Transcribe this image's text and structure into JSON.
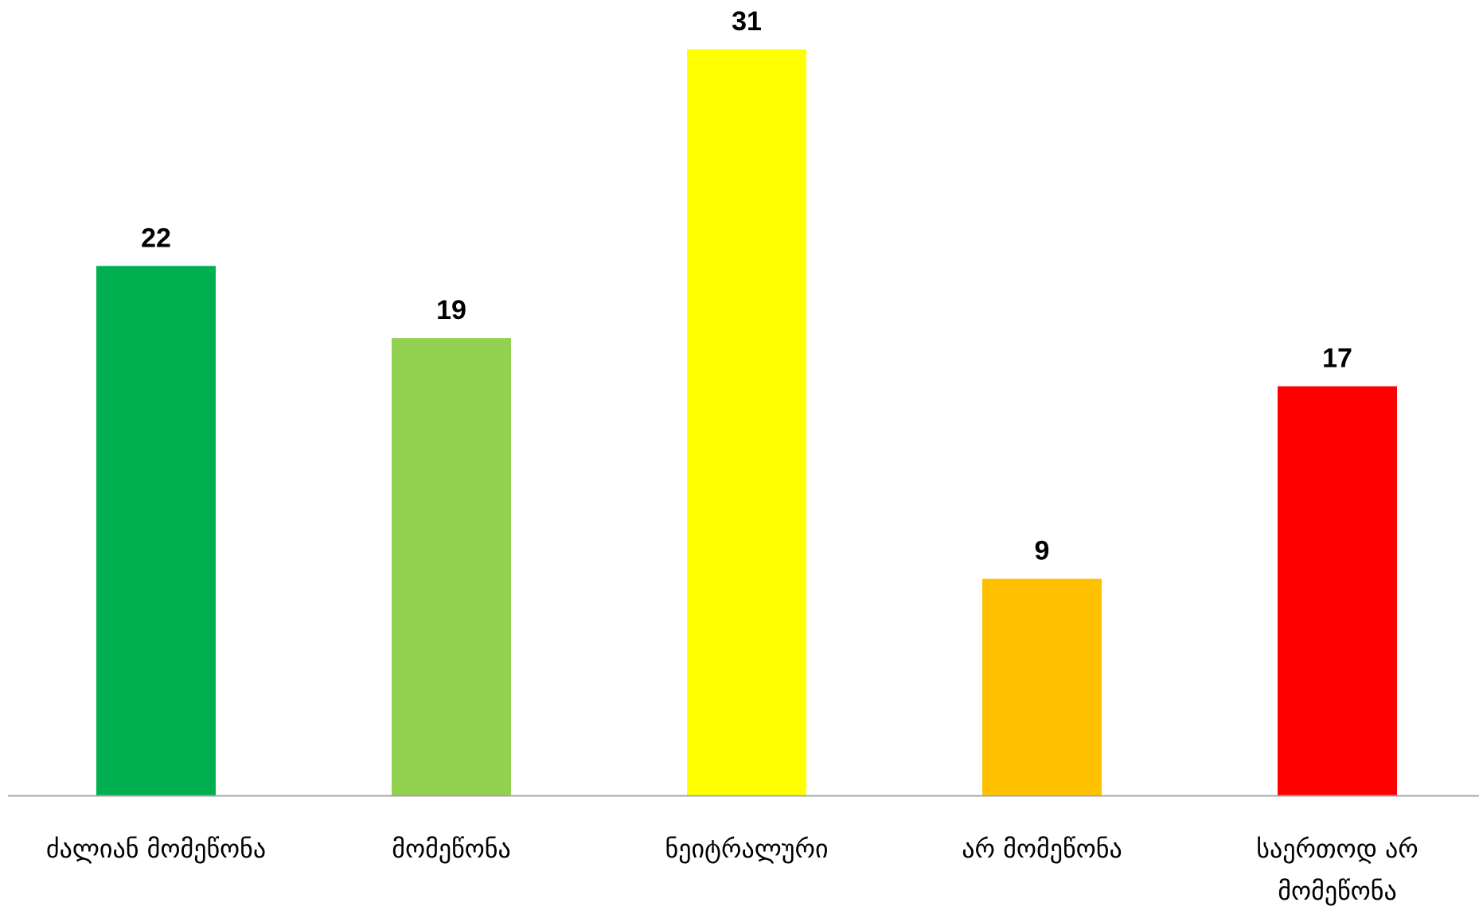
{
  "chart_data": {
    "type": "bar",
    "title": "",
    "xlabel": "",
    "ylabel": "",
    "ylim": [
      0,
      31
    ],
    "grid": false,
    "legend": "none",
    "categories": [
      [
        "ძალიან მომეწონა"
      ],
      [
        "მომეწონა"
      ],
      [
        "ნეიტრალური"
      ],
      [
        "არ მომეწონა"
      ],
      [
        "საერთოდ არ",
        "მომეწონა"
      ]
    ],
    "values": [
      22,
      19,
      31,
      9,
      17
    ],
    "colors": [
      "#00B050",
      "#92D050",
      "#FFFF00",
      "#FFC000",
      "#FF0000"
    ],
    "axis_color": "#A6A6A6"
  }
}
